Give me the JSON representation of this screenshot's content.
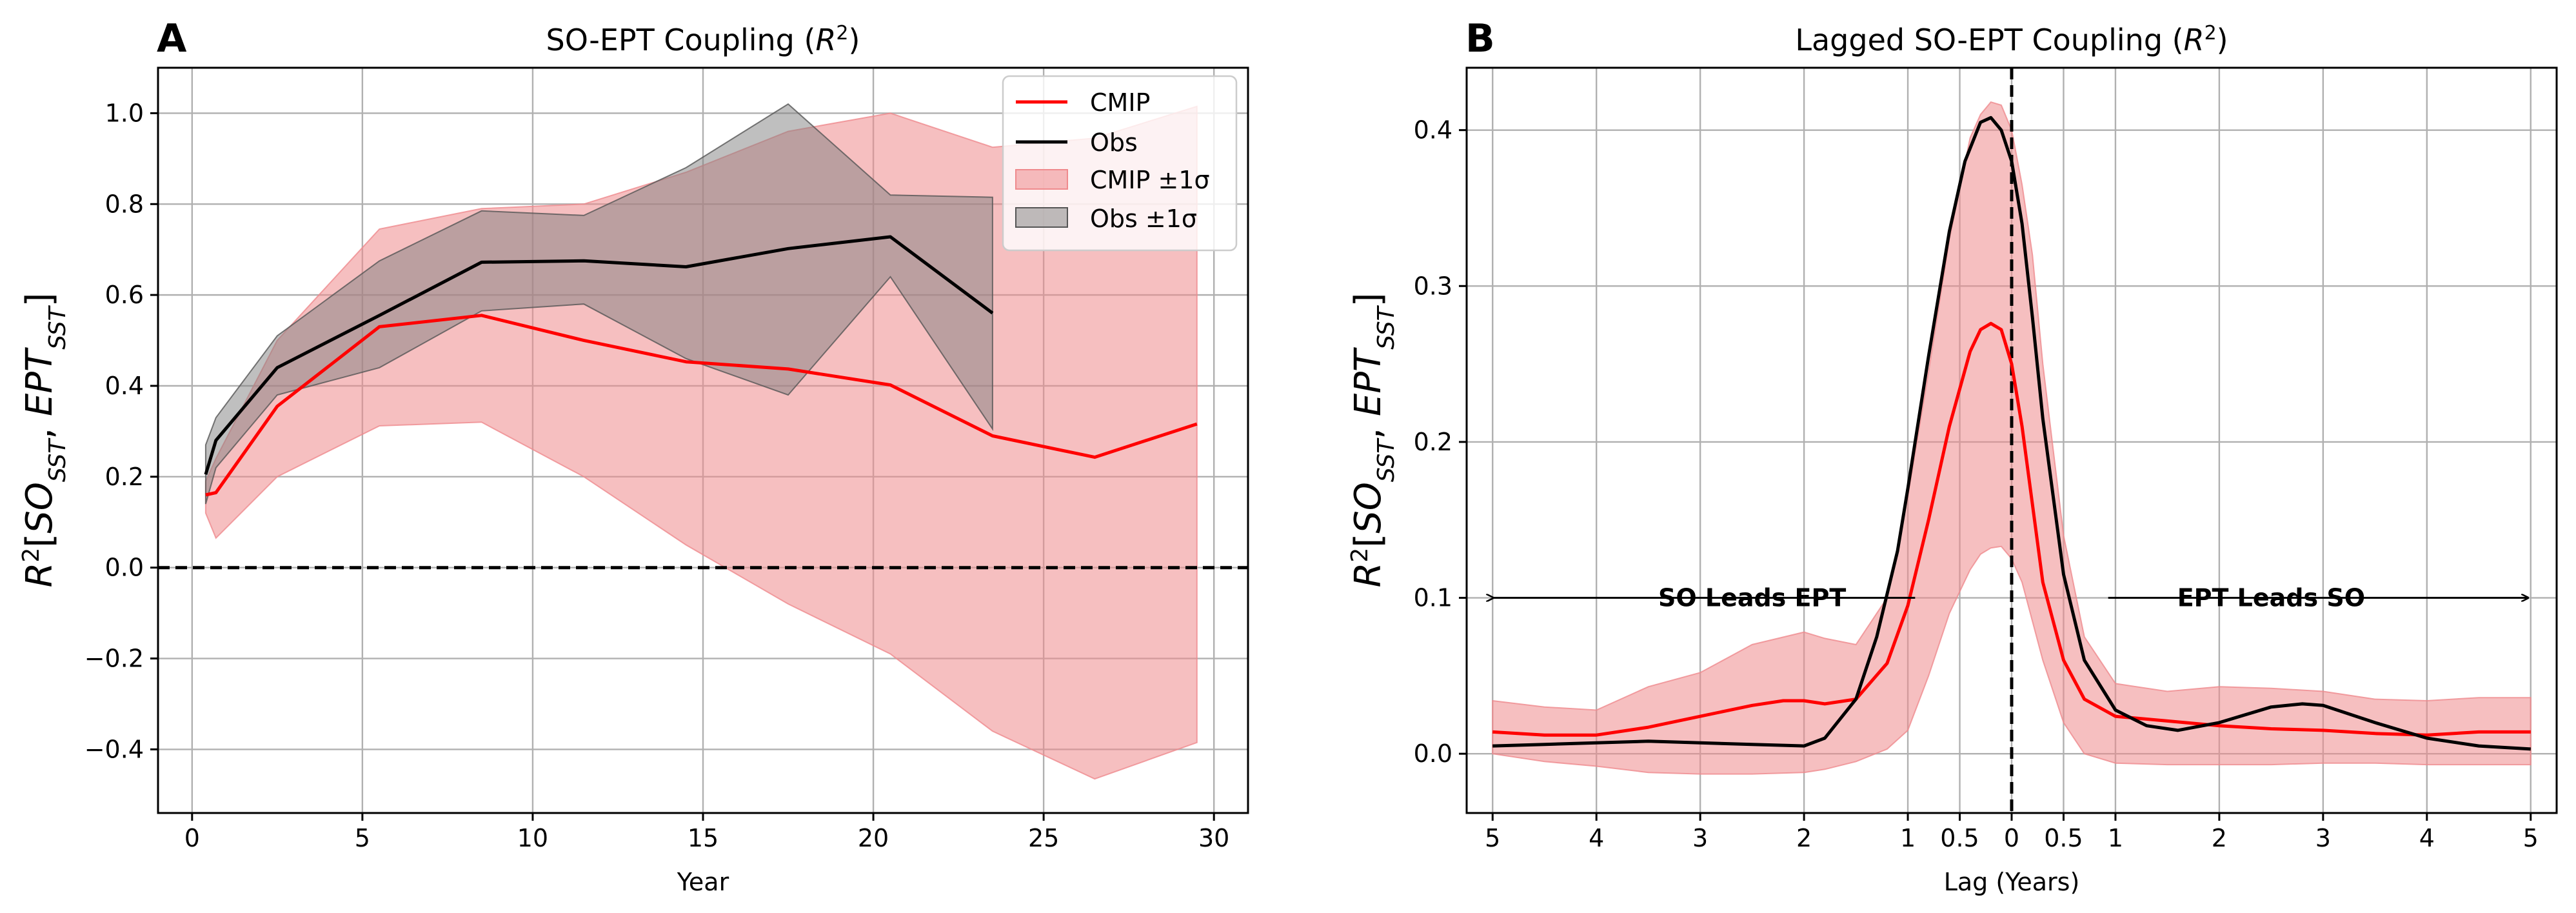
{
  "chart_data": [
    {
      "panel": "A",
      "type": "line",
      "title": "SO-EPT Coupling (R²)",
      "xlabel": "Year",
      "ylabel": "R²[SO_SST, EPT_SST]",
      "xlim": [
        -1,
        31
      ],
      "ylim": [
        -0.54,
        1.1
      ],
      "xticks": [
        0,
        5,
        10,
        15,
        20,
        25,
        30
      ],
      "yticks": [
        -0.4,
        -0.2,
        0.0,
        0.2,
        0.4,
        0.6,
        0.8,
        1.0
      ],
      "ytick_labels": [
        "−0.4",
        "−0.2",
        "0.0",
        "0.2",
        "0.4",
        "0.6",
        "0.8",
        "1.0"
      ],
      "grid": true,
      "legend_position": "top-right",
      "hline": 0.0,
      "series": [
        {
          "name": "CMIP",
          "kind": "line",
          "color": "#ff0000",
          "x": [
            0.4,
            0.7,
            2.5,
            5.5,
            8.5,
            11.5,
            14.5,
            17.5,
            20.5,
            23.5,
            26.5,
            29.5
          ],
          "values": [
            0.16,
            0.165,
            0.355,
            0.53,
            0.555,
            0.5,
            0.453,
            0.437,
            0.402,
            0.29,
            0.243,
            0.316
          ]
        },
        {
          "name": "Obs",
          "kind": "line",
          "color": "#000000",
          "x": [
            0.4,
            0.7,
            2.5,
            5.5,
            8.5,
            11.5,
            14.5,
            17.5,
            20.5,
            23.5
          ],
          "values": [
            0.205,
            0.28,
            0.44,
            0.555,
            0.672,
            0.675,
            0.662,
            0.702,
            0.728,
            0.56
          ]
        },
        {
          "name": "CMIP ±1σ",
          "kind": "band",
          "color": "#ef8a8d",
          "x": [
            0.4,
            0.7,
            2.5,
            5.5,
            8.5,
            11.5,
            14.5,
            17.5,
            20.5,
            23.5,
            26.5,
            29.5
          ],
          "lower": [
            0.12,
            0.065,
            0.2,
            0.312,
            0.32,
            0.2,
            0.05,
            -0.08,
            -0.19,
            -0.36,
            -0.465,
            -0.385
          ],
          "upper": [
            0.19,
            0.24,
            0.5,
            0.745,
            0.79,
            0.8,
            0.87,
            0.96,
            1.0,
            0.925,
            0.945,
            1.015
          ]
        },
        {
          "name": "Obs ±1σ",
          "kind": "band",
          "color": "#7f7f7f",
          "x": [
            0.4,
            0.7,
            2.5,
            5.5,
            8.5,
            11.5,
            14.5,
            17.5,
            20.5,
            23.5
          ],
          "lower": [
            0.14,
            0.22,
            0.38,
            0.44,
            0.565,
            0.58,
            0.46,
            0.38,
            0.64,
            0.305
          ],
          "upper": [
            0.27,
            0.33,
            0.51,
            0.675,
            0.785,
            0.775,
            0.88,
            1.02,
            0.82,
            0.815
          ]
        }
      ]
    },
    {
      "panel": "B",
      "type": "line",
      "title": "Lagged SO-EPT Coupling (R²)",
      "xlabel": "Lag (Years)",
      "ylabel": "R²[SO_SST, EPT_SST]",
      "xlim": [
        -5.25,
        5.25
      ],
      "ylim": [
        -0.038,
        0.44
      ],
      "xticks": [
        -5,
        -4,
        -3,
        -2,
        -1,
        -0.5,
        0,
        0.5,
        1,
        2,
        3,
        4,
        5
      ],
      "xtick_labels": [
        "5",
        "4",
        "3",
        "2",
        "1",
        "0.5",
        "0",
        "0.5",
        "1",
        "2",
        "3",
        "4",
        "5"
      ],
      "yticks": [
        0.0,
        0.1,
        0.2,
        0.3,
        0.4
      ],
      "ytick_labels": [
        "0.0",
        "0.1",
        "0.2",
        "0.3",
        "0.4"
      ],
      "grid": true,
      "vline": 0,
      "annotations": [
        {
          "text": "SO Leads EPT",
          "x": -2.5,
          "y": 0.1
        },
        {
          "text": "EPT Leads SO",
          "x": 2.5,
          "y": 0.1
        }
      ],
      "series": [
        {
          "name": "CMIP",
          "kind": "line",
          "color": "#ff0000",
          "x": [
            -5,
            -4.5,
            -4,
            -3.5,
            -3,
            -2.5,
            -2.2,
            -2,
            -1.8,
            -1.5,
            -1.2,
            -1,
            -0.8,
            -0.6,
            -0.4,
            -0.3,
            -0.2,
            -0.1,
            0,
            0.1,
            0.2,
            0.3,
            0.5,
            0.7,
            1,
            1.5,
            2,
            2.5,
            3,
            3.5,
            4,
            4.5,
            5
          ],
          "values": [
            0.014,
            0.012,
            0.012,
            0.017,
            0.024,
            0.031,
            0.034,
            0.034,
            0.032,
            0.035,
            0.058,
            0.095,
            0.15,
            0.21,
            0.258,
            0.272,
            0.276,
            0.272,
            0.25,
            0.21,
            0.16,
            0.11,
            0.06,
            0.035,
            0.024,
            0.021,
            0.018,
            0.016,
            0.015,
            0.013,
            0.012,
            0.014,
            0.014
          ]
        },
        {
          "name": "Obs",
          "kind": "line",
          "color": "#000000",
          "x": [
            -5,
            -4.5,
            -4,
            -3.5,
            -3,
            -2.5,
            -2,
            -1.8,
            -1.5,
            -1.3,
            -1.1,
            -1,
            -0.8,
            -0.6,
            -0.45,
            -0.3,
            -0.2,
            -0.1,
            0,
            0.1,
            0.2,
            0.3,
            0.5,
            0.7,
            1,
            1.3,
            1.6,
            2,
            2.5,
            2.8,
            3,
            3.5,
            4,
            4.5,
            5
          ],
          "values": [
            0.005,
            0.006,
            0.007,
            0.008,
            0.007,
            0.006,
            0.005,
            0.01,
            0.035,
            0.075,
            0.13,
            0.17,
            0.255,
            0.335,
            0.38,
            0.405,
            0.408,
            0.4,
            0.38,
            0.34,
            0.28,
            0.215,
            0.115,
            0.06,
            0.028,
            0.018,
            0.015,
            0.02,
            0.03,
            0.032,
            0.031,
            0.02,
            0.01,
            0.005,
            0.003
          ]
        },
        {
          "name": "CMIP ±1σ",
          "kind": "band",
          "color": "#ef8a8d",
          "x": [
            -5,
            -4.5,
            -4,
            -3.5,
            -3,
            -2.5,
            -2,
            -1.8,
            -1.5,
            -1.2,
            -1,
            -0.8,
            -0.6,
            -0.4,
            -0.3,
            -0.2,
            -0.1,
            0,
            0.1,
            0.2,
            0.3,
            0.5,
            0.7,
            1,
            1.5,
            2,
            2.5,
            3,
            3.5,
            4,
            4.5,
            5
          ],
          "lower": [
            0.0,
            -0.005,
            -0.008,
            -0.012,
            -0.013,
            -0.013,
            -0.012,
            -0.01,
            -0.005,
            0.003,
            0.015,
            0.05,
            0.09,
            0.118,
            0.128,
            0.132,
            0.133,
            0.125,
            0.11,
            0.085,
            0.06,
            0.02,
            0.0,
            -0.006,
            -0.007,
            -0.007,
            -0.007,
            -0.006,
            -0.006,
            -0.007,
            -0.007,
            -0.007
          ],
          "upper": [
            0.034,
            0.03,
            0.028,
            0.043,
            0.052,
            0.07,
            0.078,
            0.074,
            0.07,
            0.1,
            0.165,
            0.245,
            0.33,
            0.395,
            0.41,
            0.418,
            0.416,
            0.4,
            0.365,
            0.32,
            0.25,
            0.14,
            0.075,
            0.045,
            0.04,
            0.043,
            0.042,
            0.04,
            0.035,
            0.034,
            0.036,
            0.036
          ]
        }
      ]
    }
  ],
  "legend": {
    "entries": [
      {
        "label": "CMIP",
        "kind": "line",
        "color": "#ff0000"
      },
      {
        "label": "Obs",
        "kind": "line",
        "color": "#000000"
      },
      {
        "label": "CMIP ±1σ",
        "kind": "patch",
        "color": "#ef8a8d"
      },
      {
        "label": "Obs ±1σ",
        "kind": "patch",
        "color": "#7f7f7f"
      }
    ]
  }
}
